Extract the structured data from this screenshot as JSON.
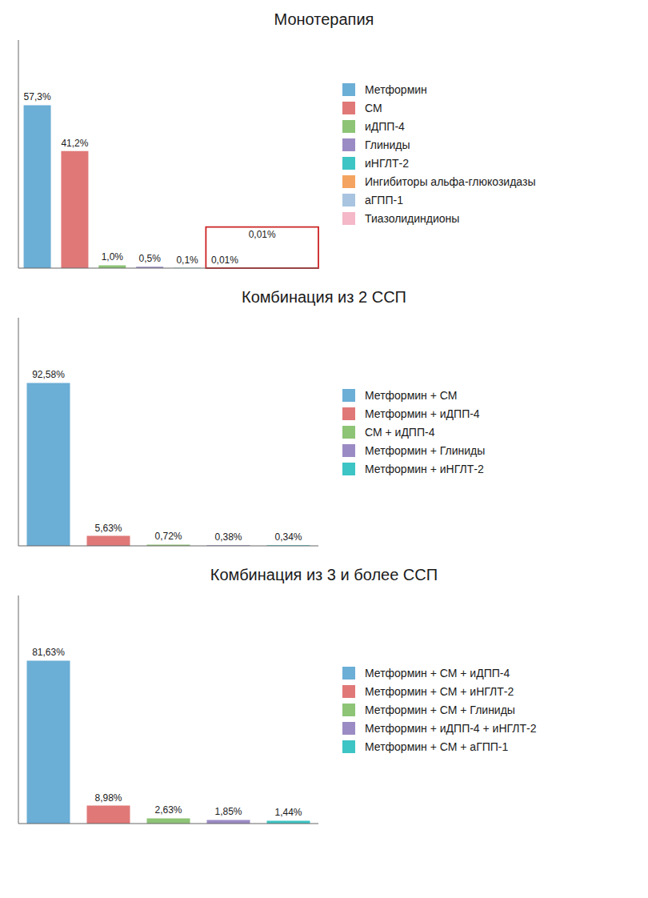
{
  "chart_data": [
    {
      "type": "bar",
      "title": "Монотерапия",
      "categories": [
        "Метформин",
        "СМ",
        "иДПП-4",
        "Глиниды",
        "иНГЛТ-2",
        "Ингибиторы альфа-глюкозидазы",
        "аГПП-1",
        "Тиазолидиндионы"
      ],
      "values": [
        57.3,
        41.2,
        1.0,
        0.5,
        0.1,
        0.01,
        0.01,
        0.01
      ],
      "value_labels": [
        "57,3%",
        "41,2%",
        "1,0%",
        "0,5%",
        "0,1%",
        "0,01%",
        null,
        null
      ],
      "colors": [
        "#6baed6",
        "#e07878",
        "#8dc476",
        "#9b8bc4",
        "#3dc4c4",
        "#f4a460",
        "#a8c4e0",
        "#f4b8c8"
      ],
      "ylim": [
        0,
        80.22
      ],
      "tick_labels": false,
      "annotations": [
        {
          "text": "0,01%",
          "from": "Ингибиторы альфа-глюкозидазы",
          "to": "Тиазолидиндионы",
          "color": "#cc2222"
        }
      ]
    },
    {
      "type": "bar",
      "title": "Комбинация из 2 ССП",
      "categories": [
        "Метформин + СМ",
        "Метформин + иДПП-4",
        "СМ + иДПП-4",
        "Метформин + Глиниды",
        "Метформин + иНГЛТ-2"
      ],
      "values": [
        92.58,
        5.63,
        0.72,
        0.38,
        0.34
      ],
      "value_labels": [
        "92,58%",
        "5,63%",
        "0,72%",
        "0,38%",
        "0,34%"
      ],
      "colors": [
        "#6baed6",
        "#e07878",
        "#8dc476",
        "#9b8bc4",
        "#3dc4c4"
      ],
      "ylim": [
        0,
        129.612
      ],
      "tick_labels": false
    },
    {
      "type": "bar",
      "title": "Комбинация из 3 и более ССП",
      "categories": [
        "Метформин + СМ + иДПП-4",
        "Метформин + СМ + иНГЛТ-2",
        "Метформин + СМ + Глиниды",
        "Метформин + иДПП-4 + иНГЛТ-2",
        "Метформин + СМ + аГПП-1"
      ],
      "values": [
        81.63,
        8.98,
        2.63,
        1.85,
        1.44
      ],
      "value_labels": [
        "81,63%",
        "8,98%",
        "2,63%",
        "1,85%",
        "1,44%"
      ],
      "colors": [
        "#6baed6",
        "#e07878",
        "#8dc476",
        "#9b8bc4",
        "#3dc4c4"
      ],
      "ylim": [
        0,
        114.282
      ],
      "tick_labels": false
    }
  ]
}
